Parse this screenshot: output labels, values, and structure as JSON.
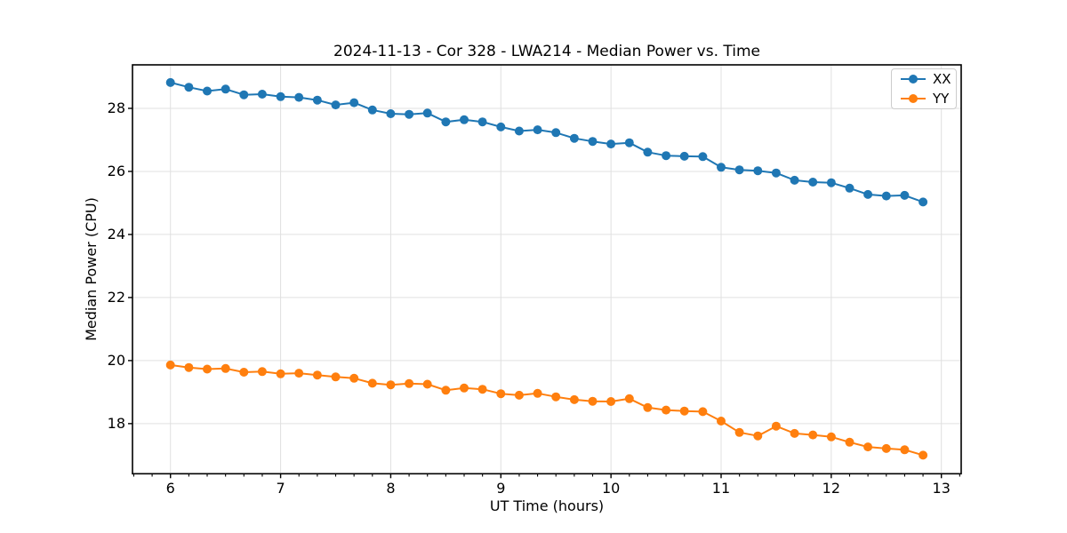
{
  "figure": {
    "window_background": "#ffffff"
  },
  "chart_data": {
    "type": "line",
    "title": "2024-11-13 - Cor 328 - LWA214 - Median Power vs. Time",
    "xlabel": "UT Time (hours)",
    "ylabel": "Median Power (CPU)",
    "xlim": [
      5.655,
      13.18
    ],
    "ylim": [
      16.41,
      29.38
    ],
    "xticks": [
      6,
      7,
      8,
      9,
      10,
      11,
      12,
      13
    ],
    "yticks": [
      18,
      20,
      22,
      24,
      26,
      28
    ],
    "x_minor_tick_step": 0.16667,
    "grid": true,
    "legend_position": "upper right",
    "x": [
      6.0,
      6.1667,
      6.3333,
      6.5,
      6.6667,
      6.8333,
      7.0,
      7.1667,
      7.3333,
      7.5,
      7.6667,
      7.8333,
      8.0,
      8.1667,
      8.3333,
      8.5,
      8.6667,
      8.8333,
      9.0,
      9.1667,
      9.3333,
      9.5,
      9.6667,
      9.8333,
      10.0,
      10.1667,
      10.3333,
      10.5,
      10.6667,
      10.8333,
      11.0,
      11.1667,
      11.3333,
      11.5,
      11.6667,
      11.8333,
      12.0,
      12.1667,
      12.3333,
      12.5,
      12.6667,
      12.8333
    ],
    "series": [
      {
        "name": "XX",
        "color": "#1f77b4",
        "values": [
          28.82,
          28.67,
          28.55,
          28.61,
          28.43,
          28.45,
          28.37,
          28.35,
          28.26,
          28.11,
          28.18,
          27.95,
          27.83,
          27.81,
          27.85,
          27.57,
          27.64,
          27.57,
          27.41,
          27.28,
          27.32,
          27.23,
          27.05,
          26.95,
          26.87,
          26.91,
          26.61,
          26.5,
          26.48,
          26.47,
          26.13,
          26.05,
          26.02,
          25.95,
          25.72,
          25.66,
          25.64,
          25.47,
          25.27,
          25.22,
          25.24,
          25.03
        ]
      },
      {
        "name": "YY",
        "color": "#ff7f0e",
        "values": [
          19.86,
          19.78,
          19.73,
          19.75,
          19.63,
          19.65,
          19.58,
          19.6,
          19.54,
          19.48,
          19.44,
          19.28,
          19.23,
          19.27,
          19.25,
          19.06,
          19.13,
          19.09,
          18.95,
          18.9,
          18.96,
          18.85,
          18.76,
          18.71,
          18.7,
          18.79,
          18.51,
          18.43,
          18.4,
          18.38,
          18.08,
          17.72,
          17.61,
          17.92,
          17.69,
          17.64,
          17.58,
          17.41,
          17.26,
          17.21,
          17.17,
          17.0
        ]
      }
    ],
    "colors": {
      "xx_line": "#1f77b4",
      "yy_line": "#ff7f0e",
      "grid": "#e0e0e0",
      "axis_frame": "#000000",
      "text": "#000000",
      "legend_border": "#cccccc"
    }
  }
}
